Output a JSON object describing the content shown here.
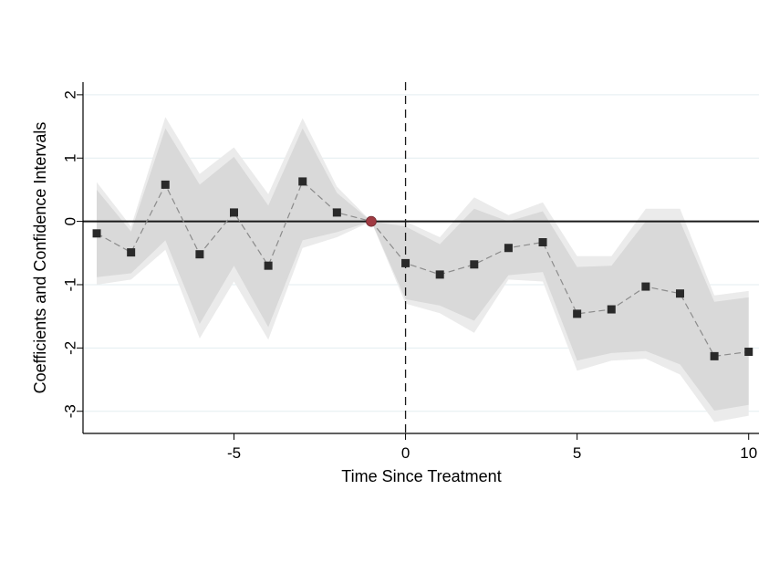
{
  "chart_data": {
    "type": "line",
    "title": "",
    "xlabel": "Time Since Treatment",
    "ylabel": "Coefficients and Confidence Intervals",
    "xlim": [
      -9.4,
      10.3
    ],
    "ylim": [
      -3.35,
      2.2
    ],
    "xticks": [
      -5,
      0,
      5,
      10
    ],
    "yticks": [
      2,
      1,
      0,
      -1,
      -2,
      -3
    ],
    "grid": true,
    "reference_lines": {
      "horizontal_y": 0,
      "vertical_x": 0
    },
    "x": [
      -9,
      -8,
      -7,
      -6,
      -5,
      -4,
      -3,
      -2,
      -1,
      0,
      1,
      2,
      3,
      4,
      5,
      6,
      7,
      8,
      9,
      10
    ],
    "series": [
      {
        "values": [
          -0.19,
          -0.49,
          0.58,
          -0.52,
          0.14,
          -0.7,
          0.63,
          0.14,
          0.0,
          -0.66,
          -0.84,
          -0.68,
          -0.42,
          -0.33,
          -1.46,
          -1.39,
          -1.03,
          -1.14,
          -2.13,
          -2.06
        ],
        "ci95_lower": [
          -0.88,
          -0.82,
          -0.3,
          -1.62,
          -0.7,
          -1.67,
          -0.3,
          -0.17,
          0.0,
          -1.23,
          -1.33,
          -1.57,
          -0.85,
          -0.8,
          -2.2,
          -2.08,
          -2.05,
          -2.26,
          -2.99,
          -2.9
        ],
        "ci95_upper": [
          0.5,
          -0.16,
          1.47,
          0.58,
          1.02,
          0.25,
          1.47,
          0.45,
          0.0,
          -0.08,
          -0.36,
          0.2,
          0.0,
          0.16,
          -0.72,
          -0.7,
          0.0,
          0.0,
          -1.27,
          -1.2
        ],
        "ci99_lower": [
          -1.0,
          -0.92,
          -0.45,
          -1.85,
          -0.95,
          -1.87,
          -0.42,
          -0.25,
          0.0,
          -1.3,
          -1.45,
          -1.76,
          -0.92,
          -0.95,
          -2.36,
          -2.2,
          -2.17,
          -2.42,
          -3.17,
          -3.07
        ],
        "ci99_upper": [
          0.62,
          -0.08,
          1.65,
          0.75,
          1.17,
          0.43,
          1.63,
          0.55,
          0.0,
          0.0,
          -0.25,
          0.38,
          0.1,
          0.3,
          -0.55,
          -0.55,
          0.2,
          0.2,
          -1.17,
          -1.1
        ]
      }
    ],
    "reference_point_x": -1,
    "colors": {
      "ci_inner": "#d9d9d9",
      "ci_outer": "#ebebeb",
      "marker": "#2a2a2a",
      "reference_marker": "#a03a42",
      "line": "#8c8c8c",
      "grid": "#e3eef0"
    }
  }
}
